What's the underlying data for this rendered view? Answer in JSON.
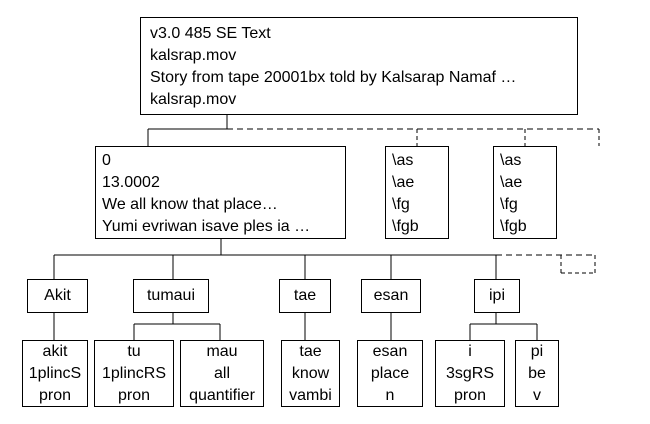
{
  "header": {
    "lines": [
      "v3.0  485  SE Text",
      "kalsrap.mov",
      "Story from tape 20001bx told by Kalsarap Namaf …",
      "kalsrap.mov"
    ]
  },
  "sentence": {
    "lines": [
      "0",
      "13.0002",
      "We all know that place…",
      "Yumi evriwan isave ples ia …"
    ]
  },
  "tier_markers": [
    [
      "\\as",
      "\\ae",
      "\\fg",
      "\\fgb"
    ],
    [
      "\\as",
      "\\ae",
      "\\fg",
      "\\fgb"
    ]
  ],
  "words": [
    {
      "text": "Akit",
      "morphemes": [
        {
          "lines": [
            "akit",
            "1plincS",
            "pron"
          ]
        }
      ]
    },
    {
      "text": "tumaui",
      "morphemes": [
        {
          "lines": [
            "tu",
            "1plincRS",
            "pron"
          ]
        },
        {
          "lines": [
            "mau",
            "all",
            "quantifier"
          ]
        }
      ]
    },
    {
      "text": "tae",
      "morphemes": [
        {
          "lines": [
            "tae",
            "know",
            "vambi"
          ]
        }
      ]
    },
    {
      "text": "esan",
      "morphemes": [
        {
          "lines": [
            "esan",
            "place",
            "n"
          ]
        }
      ]
    },
    {
      "text": "ipi",
      "morphemes": [
        {
          "lines": [
            "i",
            "3sgRS",
            "pron"
          ]
        },
        {
          "lines": [
            "pi",
            "be",
            "v"
          ]
        }
      ]
    }
  ]
}
